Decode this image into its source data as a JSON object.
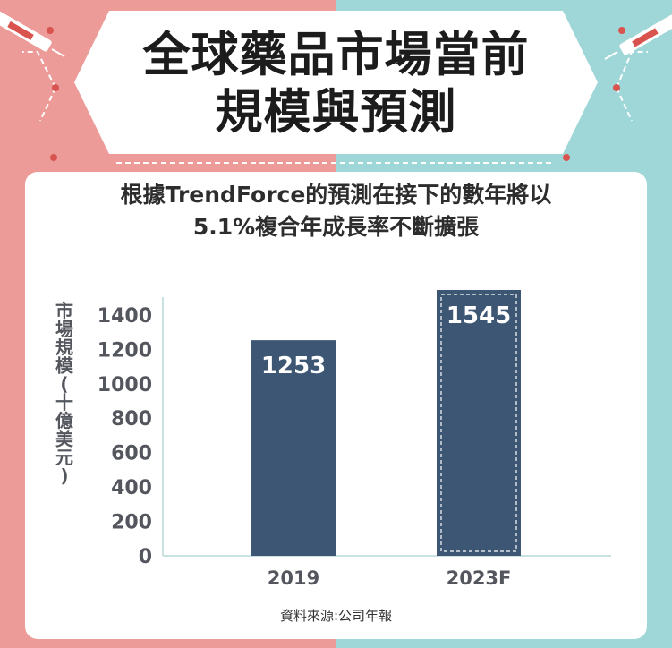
{
  "title_lines": [
    "全球藥品市場當前",
    "規模與預測"
  ],
  "subtitle_lines": [
    "根據TrendForce的預測在接下的數年將以",
    "5.1%複合年成長率不斷擴張"
  ],
  "source": "資料來源:公司年報",
  "colors": {
    "left_bg": "#ec9b98",
    "right_bg": "#9fd6d7",
    "bar": "#3d5674",
    "axis_text": "#54565e",
    "card": "#ffffff"
  },
  "chart_data": {
    "type": "bar",
    "categories": [
      "2019",
      "2023F"
    ],
    "values": [
      1253,
      1545
    ],
    "value_labels": [
      "1253",
      "1545"
    ],
    "ylabel_chars": [
      "市",
      "場",
      "規",
      "模",
      "(",
      "十",
      "億",
      "美",
      "元",
      ")"
    ],
    "yticks": [
      0,
      200,
      400,
      600,
      800,
      1000,
      1200,
      1400
    ],
    "ylim": [
      0,
      1545
    ],
    "grid": false,
    "forecast_index": 1
  }
}
